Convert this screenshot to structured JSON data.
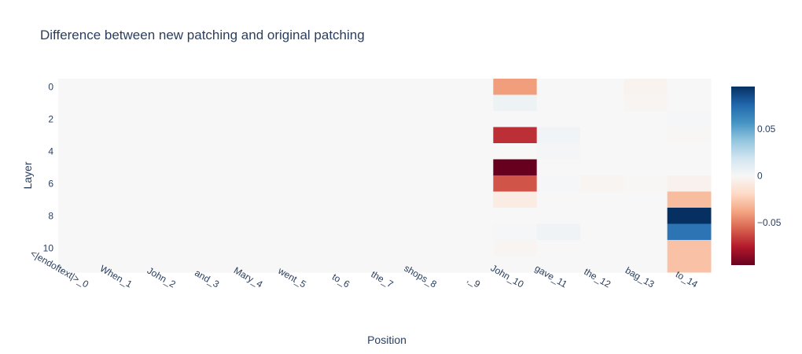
{
  "chart_data": {
    "type": "heatmap",
    "title": "Difference between new patching and original patching",
    "xlabel": "Position",
    "ylabel": "Layer",
    "x_categories": [
      "<|endoftext|>_0",
      "When_1",
      "John_2",
      "and_3",
      "Mary_4",
      "went_5",
      "to_6",
      "the_7",
      "shops_8",
      ",_9",
      "John_10",
      "gave_11",
      "the_12",
      "bag_13",
      "to_14"
    ],
    "y_categories": [
      0,
      1,
      2,
      3,
      4,
      5,
      6,
      7,
      8,
      9,
      10,
      11
    ],
    "y_tick_labels": [
      "0",
      "2",
      "4",
      "6",
      "8",
      "10"
    ],
    "y_tick_values": [
      0,
      2,
      4,
      6,
      8,
      10
    ],
    "zlim": [
      -0.095,
      0.095
    ],
    "colorscale": "RdBu",
    "colorbar_ticks": [
      {
        "value": 0.05,
        "label": "0.05"
      },
      {
        "value": 0,
        "label": "0"
      },
      {
        "value": -0.05,
        "label": "−0.05"
      }
    ],
    "z": [
      [
        0,
        0,
        0,
        0,
        0,
        0,
        0,
        0,
        0,
        0,
        -0.04,
        0,
        0,
        -0.003,
        0
      ],
      [
        0,
        0,
        0,
        0,
        0,
        0,
        0,
        0,
        0,
        0,
        0.005,
        0,
        0,
        -0.002,
        0
      ],
      [
        0,
        0,
        0,
        0,
        0,
        0,
        0,
        0,
        0,
        0,
        0,
        0,
        0,
        0,
        0.001
      ],
      [
        0,
        0,
        0,
        0,
        0,
        0,
        0,
        0,
        0,
        0,
        -0.07,
        0.003,
        0,
        0,
        -0.001
      ],
      [
        0,
        0,
        0,
        0,
        0,
        0,
        0,
        0,
        0,
        0,
        0,
        0.002,
        0,
        0,
        0
      ],
      [
        0,
        0,
        0,
        0,
        0,
        0,
        0,
        0,
        0,
        0,
        -0.095,
        0,
        0,
        0,
        0
      ],
      [
        0,
        0,
        0,
        0,
        0,
        0,
        0,
        0,
        0,
        0,
        -0.06,
        0.001,
        -0.002,
        -0.001,
        -0.004
      ],
      [
        0,
        0,
        0,
        0,
        0,
        0,
        0,
        0,
        0,
        0,
        -0.008,
        0,
        0,
        0,
        -0.03
      ],
      [
        0,
        0,
        0,
        0,
        0,
        0,
        0,
        0,
        0,
        0,
        0,
        0,
        0,
        0,
        0.095
      ],
      [
        0,
        0,
        0,
        0,
        0,
        0,
        0,
        0,
        0,
        0,
        0.001,
        0.004,
        0,
        0,
        0.07
      ],
      [
        0,
        0,
        0,
        0,
        0,
        0,
        0,
        0,
        0,
        0,
        -0.002,
        0,
        0,
        0,
        -0.028
      ],
      [
        0,
        0,
        0,
        0,
        0,
        0,
        0,
        0,
        0,
        0,
        0,
        0,
        0,
        0,
        -0.028
      ]
    ]
  }
}
